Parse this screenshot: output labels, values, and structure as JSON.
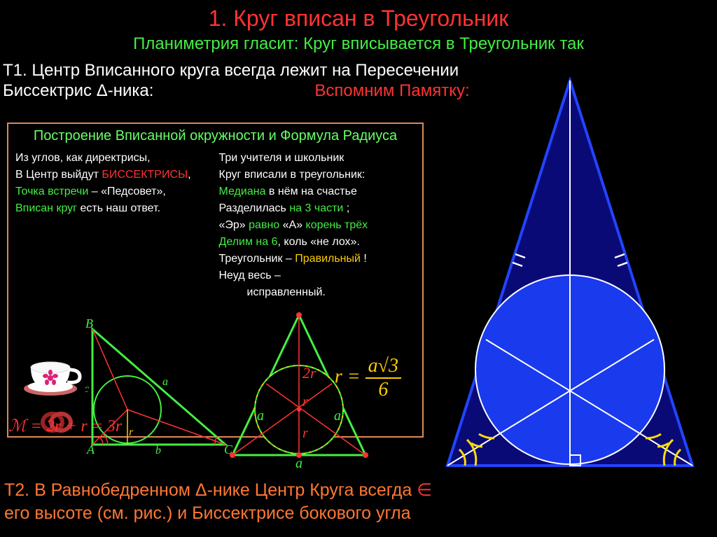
{
  "title": {
    "text": "1. Круг вписан в Треугольник",
    "color": "#ff3333"
  },
  "subtitle": {
    "text": "Планиметрия гласит: Круг вписывается в Треугольник так",
    "color": "#44ee44"
  },
  "theorem1": {
    "line1_parts": [
      {
        "text": "Т1. Центр Вписанного круга всегда лежит на Пересечении",
        "color": "#ffffff"
      }
    ],
    "line2_parts": [
      {
        "text": "Биссектрис Δ-ника:",
        "color": "#ffffff"
      }
    ]
  },
  "reminder": {
    "text": "Вспомним Памятку:",
    "color": "#ff3333"
  },
  "inset": {
    "title": "Построение Вписанной окружности и Формула Радиуса",
    "left_col": [
      {
        "text": "Из углов, как директрисы,",
        "color": "#ffffff"
      },
      {
        "text": "В Центр выйдут БИССЕКТРИСЫ,",
        "parts": [
          {
            "t": "В Центр выйдут ",
            "c": "#ffffff"
          },
          {
            "t": "БИССЕКТРИСЫ",
            "c": "#ff3333"
          },
          {
            "t": ",",
            "c": "#ffffff"
          }
        ]
      },
      {
        "text": "",
        "parts": [
          {
            "t": "Точка встречи",
            "c": "#44ee44"
          },
          {
            "t": " – «Педсовет»,",
            "c": "#ffffff"
          }
        ]
      },
      {
        "text": "",
        "parts": [
          {
            "t": "Вписан круг",
            "c": "#44ee44"
          },
          {
            "t": " есть наш ответ.",
            "c": "#ffffff"
          }
        ]
      }
    ],
    "right_col": [
      {
        "text": "Три учителя и школьник",
        "color": "#ffffff"
      },
      {
        "parts": [
          {
            "t": "Круг вписали в треугольник:",
            "c": "#ffffff"
          }
        ]
      },
      {
        "parts": [
          {
            "t": "Медиана",
            "c": "#44ee44"
          },
          {
            "t": " в нём на счастье",
            "c": "#ffffff"
          }
        ]
      },
      {
        "parts": [
          {
            "t": "Разделилась ",
            "c": "#ffffff"
          },
          {
            "t": "на 3 части",
            "c": "#44ee44"
          },
          {
            "t": " ;",
            "c": "#ffffff"
          }
        ]
      },
      {
        "parts": [
          {
            "t": "«Эр» ",
            "c": "#ffffff"
          },
          {
            "t": "равно",
            "c": "#44ee44"
          },
          {
            "t": " «А» ",
            "c": "#ffffff"
          },
          {
            "t": "корень трёх",
            "c": "#44ee44"
          }
        ]
      },
      {
        "parts": [
          {
            "t": "Делим на 6",
            "c": "#44ee44"
          },
          {
            "t": ", коль «не лох».",
            "c": "#ffffff"
          }
        ]
      },
      {
        "parts": [
          {
            "t": "Треугольник – ",
            "c": "#ffffff"
          },
          {
            "t": "Правильный",
            "c": "#ffcc00"
          },
          {
            "t": " !",
            "c": "#ffffff"
          }
        ]
      },
      {
        "parts": [
          {
            "t": "Неуд весь –",
            "c": "#ffffff"
          }
        ]
      },
      {
        "parts": [
          {
            "t": "         исправленный.",
            "c": "#ffffff"
          }
        ]
      }
    ],
    "right_triangle": {
      "vertices": {
        "A": "A",
        "B": "B",
        "C": "C"
      },
      "stroke": "#44ee44",
      "circle_stroke": "#44ee44",
      "bisector_color": "#ff3333",
      "r_label": "r",
      "side_labels": {
        "a": "a",
        "b": "b",
        "c": "c"
      }
    },
    "eq_triangle": {
      "stroke": "#44ee44",
      "circle_fill": "#000000",
      "circle_dash": "#ffcc00",
      "median_color": "#ff3333",
      "labels": {
        "r": "r",
        "2r": "2r",
        "a": "a"
      },
      "vertex_dot_color": "#ff3333"
    },
    "formula_M": "ℳ = 2r + r = 3r",
    "formula_r": {
      "lhs": "r =",
      "num": "a√3",
      "den": "6"
    },
    "cup": {
      "body_color": "#ffffff",
      "flower_color": "#dd3388",
      "saucer_color": "#dd6666"
    },
    "ring_color": "#aa2222"
  },
  "theorem2": {
    "parts": [
      {
        "t": "Т2. В Равнобедренном Δ-нике Центр Круга всегда ",
        "c": "#ff7733"
      },
      {
        "t": "∈",
        "c": "#ff3333"
      }
    ],
    "line2": {
      "t": "его высоте (см. рис.) и Биссектрисе бокового угла",
      "c": "#ff7733"
    }
  },
  "main_diagram": {
    "triangle_stroke": "#3344ff",
    "triangle_fill": "#0a0a66",
    "circle_fill": "#1133dd",
    "circle_stroke": "#ffffff",
    "bisector_color": "#ffffff",
    "angle_arc_color": "#ffdd00",
    "tick_color": "#ffffff",
    "right_angle_color": "#ffffff"
  }
}
